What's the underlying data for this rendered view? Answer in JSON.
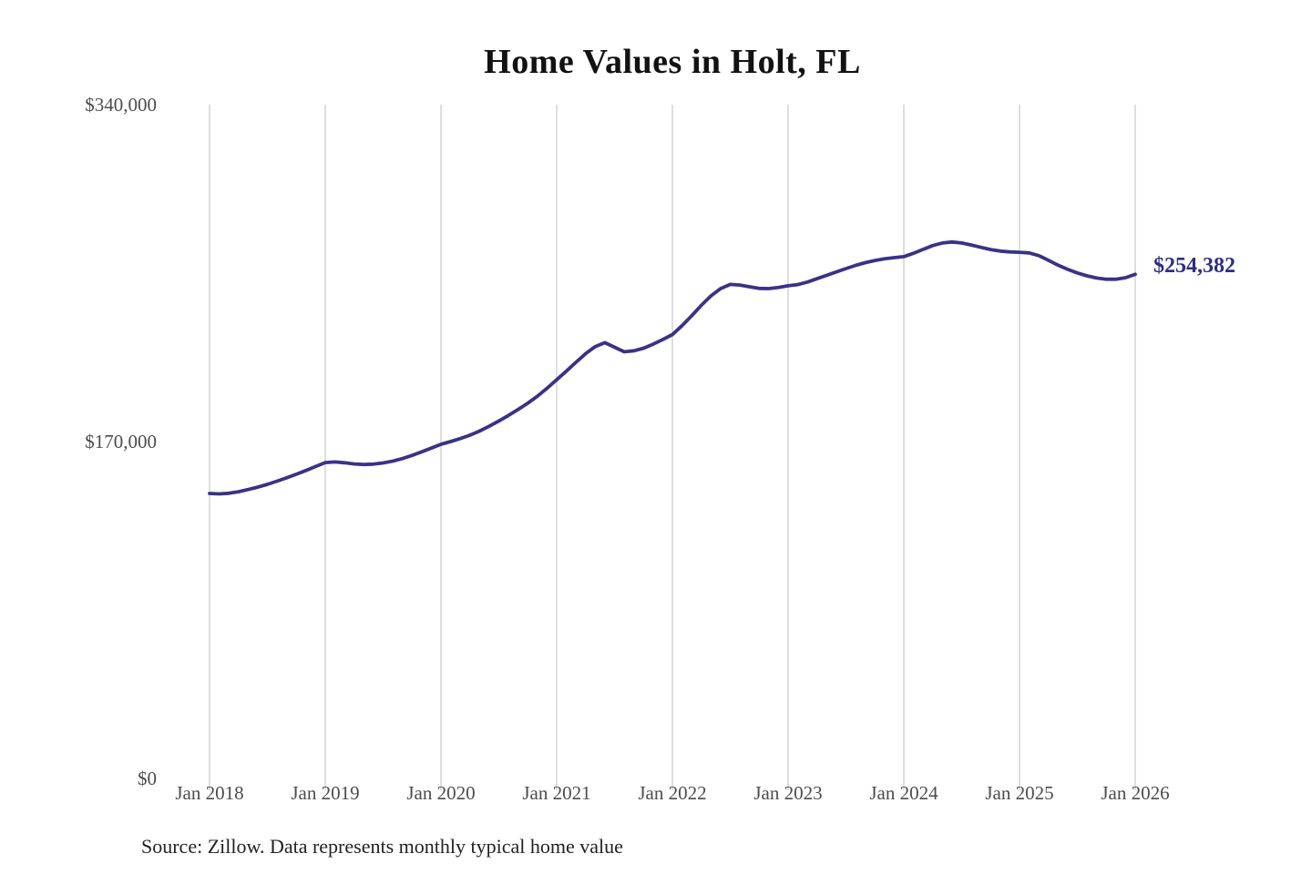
{
  "title": "Home Values in Holt, FL",
  "source_note": "Source: Zillow. Data represents monthly typical home value",
  "end_label": "$254,382",
  "colors": {
    "line": "#3a3286",
    "end_label": "#2f2d85",
    "grid": "#cfcfcf",
    "tick_text": "#4c4c4c",
    "title_text": "#121212",
    "source_text": "#222222",
    "background": "#ffffff"
  },
  "chart_data": {
    "type": "line",
    "title": "Home Values in Holt, FL",
    "xlabel": "",
    "ylabel": "",
    "ylim": [
      0,
      340000
    ],
    "grid": "vertical-only",
    "legend": "none",
    "y_ticks": [
      {
        "label": "$340,000",
        "value": 340000
      },
      {
        "label": "$170,000",
        "value": 170000
      },
      {
        "label": "$0",
        "value": 0
      }
    ],
    "x_ticks": [
      "Jan 2018",
      "Jan 2019",
      "Jan 2020",
      "Jan 2021",
      "Jan 2022",
      "Jan 2023",
      "Jan 2024",
      "Jan 2025",
      "Jan 2026"
    ],
    "points_per_year": 12,
    "x_start": "Jan 2018",
    "x_end": "Jan 2026",
    "end_value": 254382,
    "end_value_label": "$254,382",
    "series": [
      {
        "name": "Monthly typical home value",
        "values": [
          143800,
          143600,
          143900,
          144700,
          145800,
          147000,
          148400,
          150000,
          151700,
          153500,
          155400,
          157400,
          159400,
          159700,
          159300,
          158700,
          158400,
          158600,
          159200,
          160100,
          161400,
          163000,
          164800,
          166700,
          168600,
          170000,
          171500,
          173200,
          175300,
          177700,
          180400,
          183200,
          186200,
          189400,
          192900,
          196900,
          201200,
          205500,
          210000,
          214400,
          217900,
          219900,
          217600,
          215300,
          215800,
          217100,
          219100,
          221500,
          224000,
          228500,
          233500,
          238800,
          243500,
          247200,
          249300,
          249000,
          248100,
          247300,
          247200,
          247800,
          248600,
          249200,
          250500,
          252200,
          253900,
          255600,
          257300,
          258900,
          260300,
          261400,
          262200,
          262800,
          263300,
          265000,
          267000,
          268900,
          270200,
          270700,
          270200,
          269200,
          268000,
          266900,
          266100,
          265700,
          265500,
          265200,
          263800,
          261500,
          259000,
          256900,
          255100,
          253600,
          252500,
          251900,
          251900,
          252700,
          254382
        ]
      }
    ]
  }
}
